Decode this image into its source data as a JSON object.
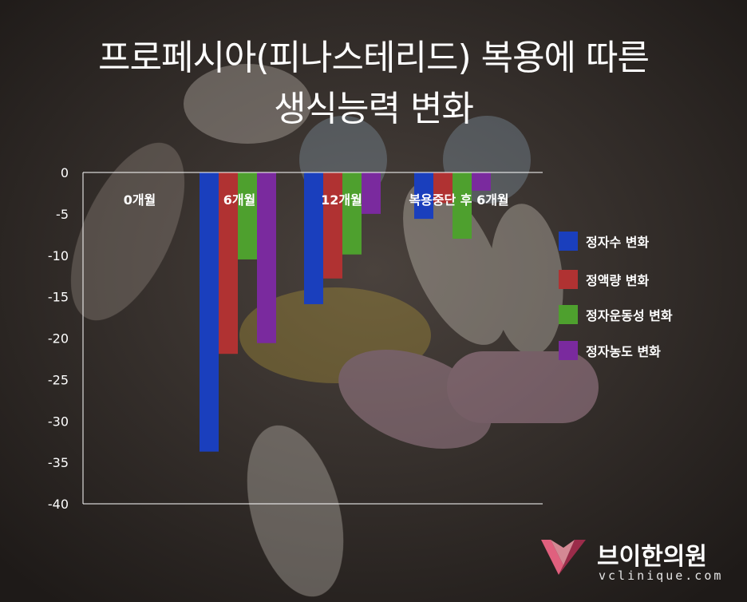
{
  "title": {
    "line1": "프로페시아(피나스테리드) 복용에 따른",
    "line2": "생식능력 변화"
  },
  "colors": {
    "series": [
      "#1a3fbd",
      "#b03232",
      "#4ea02e",
      "#7a2a9e"
    ],
    "axis": "#ffffff",
    "text": "#ffffff"
  },
  "chart_data": {
    "type": "bar",
    "categories": [
      "0개월",
      "6개월",
      "12개월",
      "복용중단 후 6개월"
    ],
    "series": [
      {
        "name": "정자수 변화",
        "values": [
          0,
          -33.7,
          -15.9,
          -5.6
        ]
      },
      {
        "name": "정액량 변화",
        "values": [
          0,
          -21.9,
          -12.8,
          -3.7
        ]
      },
      {
        "name": "정자운동성 변화",
        "values": [
          0,
          -10.5,
          -9.9,
          -8.0
        ]
      },
      {
        "name": "정자농도 변화",
        "values": [
          0,
          -20.6,
          -5.0,
          -2.2
        ]
      }
    ],
    "ylim": [
      -40,
      0
    ],
    "yticks": [
      0,
      -5,
      -10,
      -15,
      -20,
      -25,
      -30,
      -35,
      -40
    ],
    "legend": "right",
    "grid": false
  },
  "logo": {
    "name": "브이한의원",
    "url": "vclinique.com"
  }
}
